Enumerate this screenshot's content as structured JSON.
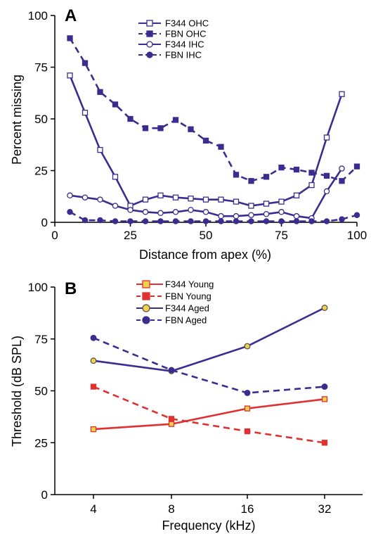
{
  "colors": {
    "purple": "#3b2d8f",
    "red": "#e03030",
    "yellow_fill": "#f2d24b",
    "axis": "#000000"
  },
  "chart_data": [
    {
      "type": "line",
      "panel_label": "A",
      "xlabel": "Distance from apex (%)",
      "ylabel": "Percent missing",
      "xlim": [
        0,
        100
      ],
      "ylim": [
        0,
        100
      ],
      "xticks": [
        0,
        25,
        50,
        75,
        100
      ],
      "yticks": [
        0,
        25,
        50,
        75,
        100
      ],
      "legend_position": "top-center",
      "series": [
        {
          "name": "F344 OHC",
          "style": "solid",
          "marker": "open-square",
          "x": [
            5,
            10,
            15,
            20,
            25,
            30,
            35,
            40,
            45,
            50,
            55,
            60,
            65,
            70,
            75,
            80,
            85,
            90,
            95
          ],
          "y": [
            71,
            53,
            35,
            22,
            8,
            11,
            13,
            12,
            11.5,
            11,
            11,
            10,
            8,
            9,
            10,
            13,
            18,
            41,
            62
          ]
        },
        {
          "name": "FBN OHC",
          "style": "dashed",
          "marker": "filled-square",
          "x": [
            5,
            10,
            15,
            20,
            25,
            30,
            35,
            40,
            45,
            50,
            55,
            60,
            65,
            70,
            75,
            80,
            85,
            90,
            95,
            100
          ],
          "y": [
            89,
            77,
            63,
            57,
            50,
            45.5,
            45.5,
            49.5,
            45,
            39.5,
            36.5,
            23,
            20,
            22,
            26.5,
            25.5,
            24,
            22.5,
            20,
            27
          ]
        },
        {
          "name": "F344 IHC",
          "style": "solid",
          "marker": "open-circle",
          "x": [
            5,
            10,
            15,
            20,
            25,
            30,
            35,
            40,
            45,
            50,
            55,
            60,
            65,
            70,
            75,
            80,
            85,
            90,
            95
          ],
          "y": [
            13,
            12,
            11,
            8,
            6,
            5,
            4.5,
            5,
            6,
            5,
            3,
            3,
            3.5,
            4,
            5,
            3,
            2,
            15,
            26
          ]
        },
        {
          "name": "FBN IHC",
          "style": "dashed",
          "marker": "filled-circle",
          "x": [
            5,
            10,
            15,
            20,
            25,
            30,
            35,
            40,
            45,
            50,
            55,
            60,
            65,
            70,
            75,
            80,
            85,
            90,
            95,
            100
          ],
          "y": [
            5,
            1,
            1,
            0.5,
            0.5,
            0.5,
            0.5,
            0.5,
            0.5,
            0.5,
            0.5,
            0.5,
            0.5,
            0.5,
            0.5,
            0.5,
            0.5,
            0.5,
            1.5,
            3.5
          ]
        }
      ]
    },
    {
      "type": "line",
      "panel_label": "B",
      "xlabel": "Frequency (kHz)",
      "ylabel": "Threshold (dB SPL)",
      "categories": [
        "4",
        "8",
        "16",
        "32"
      ],
      "ylim": [
        0,
        100
      ],
      "yticks": [
        0,
        25,
        50,
        75,
        100
      ],
      "legend_position": "top-center",
      "series": [
        {
          "name": "F344 Young",
          "style": "solid",
          "color": "#e03030",
          "marker": "yellow-square",
          "values": [
            31.5,
            34,
            41.5,
            46
          ]
        },
        {
          "name": "FBN Young",
          "style": "dashed",
          "color": "#e03030",
          "marker": "red-square",
          "values": [
            52,
            36.5,
            30.5,
            25
          ]
        },
        {
          "name": "F344 Aged",
          "style": "solid",
          "color": "#3b2d8f",
          "marker": "yellow-circle",
          "values": [
            64.5,
            59.5,
            71.5,
            90
          ]
        },
        {
          "name": "FBN Aged",
          "style": "dashed",
          "color": "#3b2d8f",
          "marker": "purple-circle",
          "values": [
            75.5,
            60,
            49,
            52
          ]
        }
      ]
    }
  ]
}
